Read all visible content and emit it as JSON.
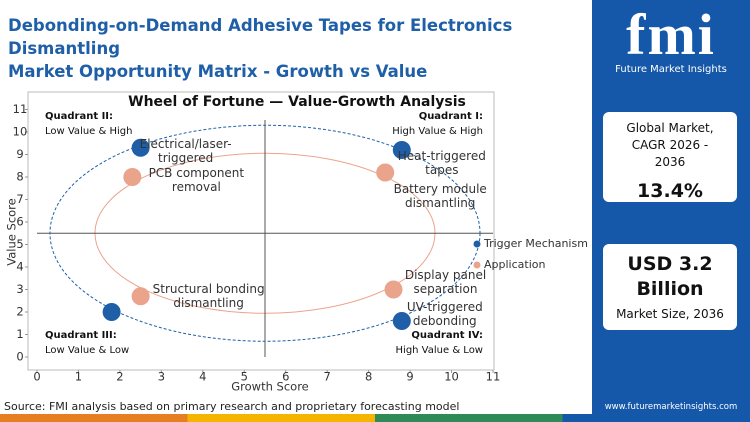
{
  "header": {
    "title_lines": [
      "Debonding-on-Demand Adhesive Tapes for Electronics Dismantling",
      "Market Opportunity Matrix - Growth vs Value"
    ]
  },
  "chart_data": {
    "type": "scatter",
    "title": "Wheel of Fortune — Value-Growth Analysis",
    "x_label": "Growth Score",
    "y_label": "Value Score",
    "xlim": [
      0,
      11
    ],
    "ylim": [
      -0.5,
      11.5
    ],
    "xticks": [
      0,
      1,
      2,
      3,
      4,
      5,
      6,
      7,
      8,
      9,
      10,
      11
    ],
    "yticks": [
      0,
      1,
      2,
      3,
      4,
      5,
      6,
      7,
      8,
      9,
      10,
      11
    ],
    "x_divider": 5.5,
    "y_divider": 5.5,
    "quadrants": [
      {
        "name": "Quadrant II:",
        "desc": "Low Value & High",
        "corner": "top-left"
      },
      {
        "name": "Quadrant I:",
        "desc": "High Value & High",
        "corner": "top-right"
      },
      {
        "name": "Quadrant III:",
        "desc": "Low Value & Low",
        "corner": "bottom-left"
      },
      {
        "name": "Quadrant IV:",
        "desc": "High Value & Low",
        "corner": "bottom-right"
      }
    ],
    "series": [
      {
        "name": "Trigger Mechanism",
        "color": "#1f5fa8",
        "x": [
          2.5,
          8.8,
          1.8,
          8.8
        ],
        "values": [
          9.3,
          9.2,
          2.0,
          1.6
        ],
        "labels": [
          "Electrical/laser-triggered",
          "Heat-triggered tapes",
          null,
          "UV-triggered debonding"
        ]
      },
      {
        "name": "Application",
        "color": "#eba48c",
        "x": [
          2.3,
          8.4,
          8.6,
          2.5
        ],
        "values": [
          8.0,
          8.2,
          3.0,
          2.7
        ],
        "labels": [
          "PCB component removal",
          "Battery module dismantling",
          "Display panel separation",
          "Structural bonding dismantling"
        ]
      }
    ]
  },
  "source": "Source: FMI analysis based on primary research and proprietary forecasting model",
  "sidebar": {
    "logo": "fmi",
    "tagline": "Future Market Insights",
    "card1": {
      "label": "Global Market, CAGR 2026 - 2036",
      "value": "13.4%"
    },
    "card2": {
      "value": "USD 3.2 Billion",
      "label": "Market Size, 2036"
    },
    "url": "www.futuremarketinsights.com"
  }
}
